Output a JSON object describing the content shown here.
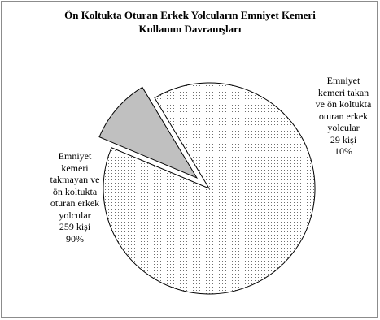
{
  "chart_data": {
    "type": "pie",
    "title": "Ön Koltukta Oturan Erkek Yolcuların Emniyet Kemeri Kullanım Davranışları",
    "title_lines": [
      "Ön Koltukta Oturan Erkek Yolcuların Emniyet Kemeri",
      "Kullanım Davranışları"
    ],
    "slices": [
      {
        "label": "Emniyet kemeri takmayan ve ön koltukta oturan erkek yolcular",
        "value": 259,
        "percent": 90,
        "fill": "dotted",
        "label_lines": [
          "Emniyet",
          "kemeri",
          "takmayan ve",
          "ön koltukta",
          "oturan erkek",
          "yolcular",
          "259 kişi",
          "90%"
        ]
      },
      {
        "label": "Emniyet kemeri takan ve ön koltukta oturan erkek yolcular",
        "value": 29,
        "percent": 10,
        "fill": "#c0c0c0",
        "exploded": true,
        "label_lines": [
          "Emniyet",
          "kemeri takan",
          "ve ön koltukta",
          "oturan erkek",
          "yolcular",
          "29 kişi",
          "10%"
        ]
      }
    ],
    "legend": "none"
  }
}
